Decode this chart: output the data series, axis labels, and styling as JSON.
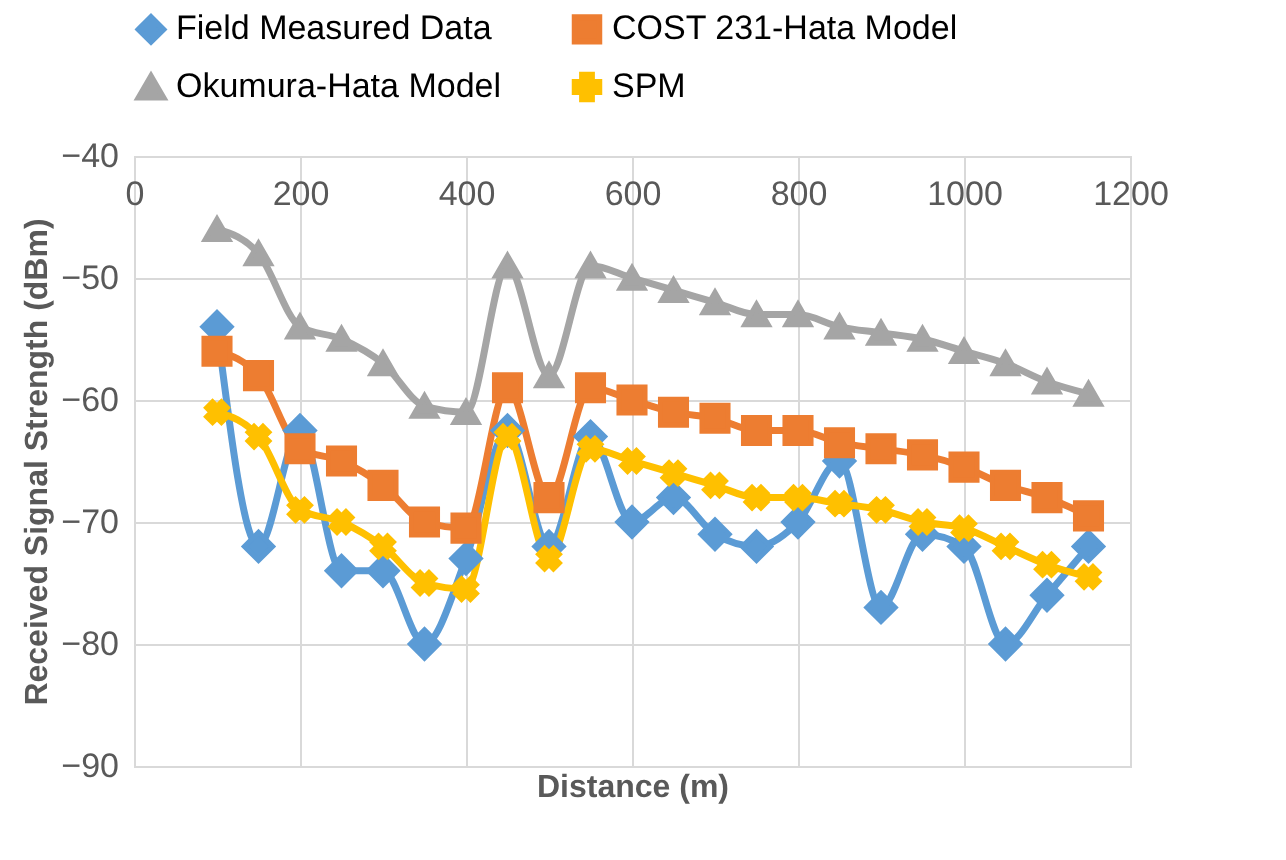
{
  "chart_data": {
    "type": "line",
    "xlabel": "Distance (m)",
    "ylabel": "Received Signal Strength (dBm)",
    "x": [
      100,
      150,
      200,
      250,
      300,
      350,
      400,
      450,
      500,
      550,
      600,
      650,
      700,
      750,
      800,
      850,
      900,
      950,
      1000,
      1050,
      1100,
      1150
    ],
    "series": [
      {
        "name": "Field Measured Data",
        "color": "#5b9bd5",
        "marker": "diamond",
        "values": [
          -54,
          -72,
          -62.5,
          -74,
          -74,
          -80,
          -73,
          -62.5,
          -72,
          -63,
          -70,
          -68,
          -71,
          -72,
          -70,
          -65,
          -77,
          -71,
          -72,
          -80,
          -76,
          -72
        ]
      },
      {
        "name": "COST 231-Hata Model",
        "color": "#ed7d31",
        "marker": "square",
        "values": [
          -56,
          -58,
          -64,
          -65,
          -67,
          -70,
          -70.5,
          -59,
          -68,
          -59,
          -60,
          -61,
          -61.5,
          -62.5,
          -62.5,
          -63.5,
          -64,
          -64.5,
          -65.5,
          -67,
          -68,
          -69.5
        ]
      },
      {
        "name": "Okumura-Hata Model",
        "color": "#a5a5a5",
        "marker": "triangle",
        "values": [
          -46,
          -48,
          -54,
          -55,
          -57,
          -60.5,
          -61,
          -49,
          -58,
          -49,
          -50,
          -51,
          -52,
          -53,
          -53,
          -54,
          -54.5,
          -55,
          -56,
          -57,
          -58.5,
          -59.5
        ]
      },
      {
        "name": "SPM",
        "color": "#ffc000",
        "marker": "cross",
        "values": [
          -61,
          -63,
          -69,
          -70,
          -72,
          -75,
          -75.5,
          -63,
          -73,
          -64,
          -65,
          -66,
          -67,
          -68,
          -68,
          -68.5,
          -69,
          -70,
          -70.5,
          -72,
          -73.5,
          -74.5
        ]
      }
    ],
    "xlim": [
      0,
      1200
    ],
    "xticks": [
      0,
      200,
      400,
      600,
      800,
      1000,
      1200
    ],
    "ylim": [
      -90,
      -40
    ],
    "yticks": [
      -90,
      -80,
      -70,
      -60,
      -50,
      -40
    ],
    "grid": true,
    "legend": "top"
  }
}
